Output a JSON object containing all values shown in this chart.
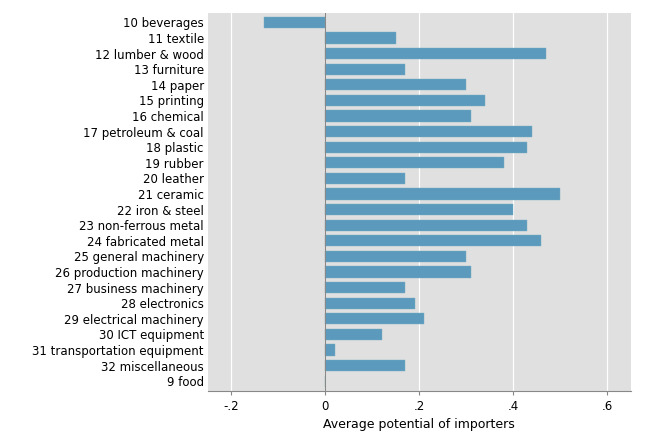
{
  "categories": [
    "10 beverages",
    "11 textile",
    "12 lumber & wood",
    "13 furniture",
    "14 paper",
    "15 printing",
    "16 chemical",
    "17 petroleum & coal",
    "18 plastic",
    "19 rubber",
    "20 leather",
    "21 ceramic",
    "22 iron & steel",
    "23 non-ferrous metal",
    "24 fabricated metal",
    "25 general machinery",
    "26 production machinery",
    "27 business machinery",
    "28 electronics",
    "29 electrical machinery",
    "30 ICT equipment",
    "31 transportation equipment",
    "32 miscellaneous",
    "9 food"
  ],
  "values": [
    -0.13,
    0.15,
    0.47,
    0.17,
    0.3,
    0.34,
    0.31,
    0.44,
    0.43,
    0.38,
    0.17,
    0.5,
    0.4,
    0.43,
    0.46,
    0.3,
    0.31,
    0.17,
    0.19,
    0.21,
    0.12,
    0.02,
    0.17,
    0.0
  ],
  "bar_color": "#5b9abd",
  "plot_bg_color": "#e0e0e0",
  "fig_bg_color": "#ffffff",
  "xlabel": "Average potential of importers",
  "xlim": [
    -0.25,
    0.65
  ],
  "xticks": [
    -0.2,
    0.0,
    0.2,
    0.4,
    0.6
  ],
  "xticklabels": [
    "-.2",
    "0",
    ".2",
    ".4",
    ".6"
  ],
  "grid_color": "#ffffff",
  "label_fontsize": 8.5,
  "tick_fontsize": 8.5,
  "xlabel_fontsize": 9,
  "bar_height": 0.72,
  "bar_edgecolor": "#7aafc0",
  "bar_linewidth": 0.3
}
